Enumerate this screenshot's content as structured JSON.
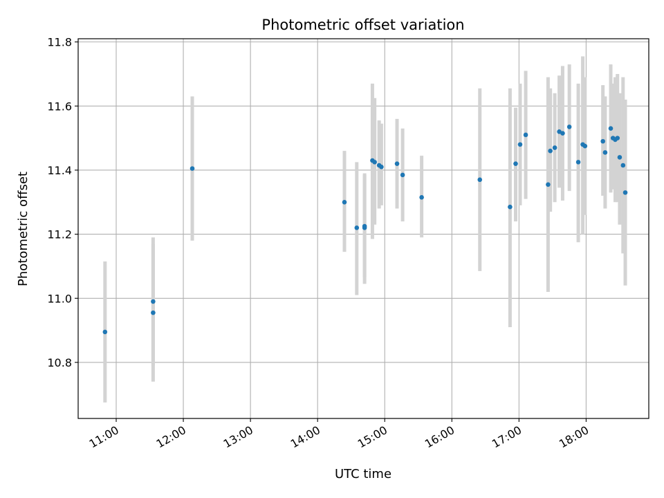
{
  "chart_data": {
    "type": "scatter",
    "title": "Photometric offset variation",
    "xlabel": "UTC time",
    "ylabel": "Photometric offset",
    "x_ticks": [
      "11:00",
      "12:00",
      "13:00",
      "14:00",
      "15:00",
      "16:00",
      "17:00",
      "18:00"
    ],
    "x_tick_hours": [
      11,
      12,
      13,
      14,
      15,
      16,
      17,
      18
    ],
    "y_ticks": [
      10.8,
      11.0,
      11.2,
      11.4,
      11.6,
      11.8
    ],
    "xlim": [
      "10:26",
      "18:56"
    ],
    "ylim": [
      10.625,
      11.81
    ],
    "grid": true,
    "marker_color": "#1f77b4",
    "errorbar_color": "#d3d3d3",
    "points": [
      {
        "t": "10:50",
        "y": 10.895,
        "err_low": 10.675,
        "err_high": 11.115
      },
      {
        "t": "11:33",
        "y": 10.99,
        "err_low": 10.79,
        "err_high": 11.19
      },
      {
        "t": "11:33",
        "y": 10.955,
        "err_low": 10.74,
        "err_high": 11.17
      },
      {
        "t": "12:08",
        "y": 11.405,
        "err_low": 11.18,
        "err_high": 11.63
      },
      {
        "t": "14:24",
        "y": 11.3,
        "err_low": 11.145,
        "err_high": 11.46
      },
      {
        "t": "14:35",
        "y": 11.22,
        "err_low": 11.01,
        "err_high": 11.425
      },
      {
        "t": "14:42",
        "y": 11.225,
        "err_low": 11.065,
        "err_high": 11.39
      },
      {
        "t": "14:42",
        "y": 11.22,
        "err_low": 11.045,
        "err_high": 11.385
      },
      {
        "t": "14:49",
        "y": 11.43,
        "err_low": 11.185,
        "err_high": 11.67
      },
      {
        "t": "14:51",
        "y": 11.425,
        "err_low": 11.23,
        "err_high": 11.625
      },
      {
        "t": "14:55",
        "y": 11.415,
        "err_low": 11.28,
        "err_high": 11.555
      },
      {
        "t": "14:57",
        "y": 11.41,
        "err_low": 11.29,
        "err_high": 11.545
      },
      {
        "t": "15:11",
        "y": 11.42,
        "err_low": 11.28,
        "err_high": 11.56
      },
      {
        "t": "15:16",
        "y": 11.385,
        "err_low": 11.24,
        "err_high": 11.53
      },
      {
        "t": "15:33",
        "y": 11.315,
        "err_low": 11.19,
        "err_high": 11.445
      },
      {
        "t": "16:25",
        "y": 11.37,
        "err_low": 11.085,
        "err_high": 11.655
      },
      {
        "t": "16:52",
        "y": 11.285,
        "err_low": 10.91,
        "err_high": 11.655
      },
      {
        "t": "16:57",
        "y": 11.42,
        "err_low": 11.24,
        "err_high": 11.595
      },
      {
        "t": "17:01",
        "y": 11.48,
        "err_low": 11.29,
        "err_high": 11.67
      },
      {
        "t": "17:06",
        "y": 11.51,
        "err_low": 11.31,
        "err_high": 11.71
      },
      {
        "t": "17:26",
        "y": 11.355,
        "err_low": 11.02,
        "err_high": 11.69
      },
      {
        "t": "17:28",
        "y": 11.46,
        "err_low": 11.27,
        "err_high": 11.655
      },
      {
        "t": "17:32",
        "y": 11.47,
        "err_low": 11.3,
        "err_high": 11.64
      },
      {
        "t": "17:36",
        "y": 11.52,
        "err_low": 11.345,
        "err_high": 11.695
      },
      {
        "t": "17:39",
        "y": 11.515,
        "err_low": 11.305,
        "err_high": 11.725
      },
      {
        "t": "17:45",
        "y": 11.535,
        "err_low": 11.335,
        "err_high": 11.73
      },
      {
        "t": "17:53",
        "y": 11.425,
        "err_low": 11.175,
        "err_high": 11.67
      },
      {
        "t": "17:57",
        "y": 11.48,
        "err_low": 11.2,
        "err_high": 11.755
      },
      {
        "t": "17:59",
        "y": 11.475,
        "err_low": 11.26,
        "err_high": 11.69
      },
      {
        "t": "18:15",
        "y": 11.49,
        "err_low": 11.32,
        "err_high": 11.665
      },
      {
        "t": "18:17",
        "y": 11.455,
        "err_low": 11.28,
        "err_high": 11.63
      },
      {
        "t": "18:22",
        "y": 11.53,
        "err_low": 11.33,
        "err_high": 11.73
      },
      {
        "t": "18:24",
        "y": 11.5,
        "err_low": 11.34,
        "err_high": 11.67
      },
      {
        "t": "18:26",
        "y": 11.495,
        "err_low": 11.3,
        "err_high": 11.69
      },
      {
        "t": "18:28",
        "y": 11.5,
        "err_low": 11.3,
        "err_high": 11.7
      },
      {
        "t": "18:30",
        "y": 11.44,
        "err_low": 11.23,
        "err_high": 11.64
      },
      {
        "t": "18:33",
        "y": 11.415,
        "err_low": 11.14,
        "err_high": 11.69
      },
      {
        "t": "18:35",
        "y": 11.33,
        "err_low": 11.04,
        "err_high": 11.62
      }
    ]
  }
}
